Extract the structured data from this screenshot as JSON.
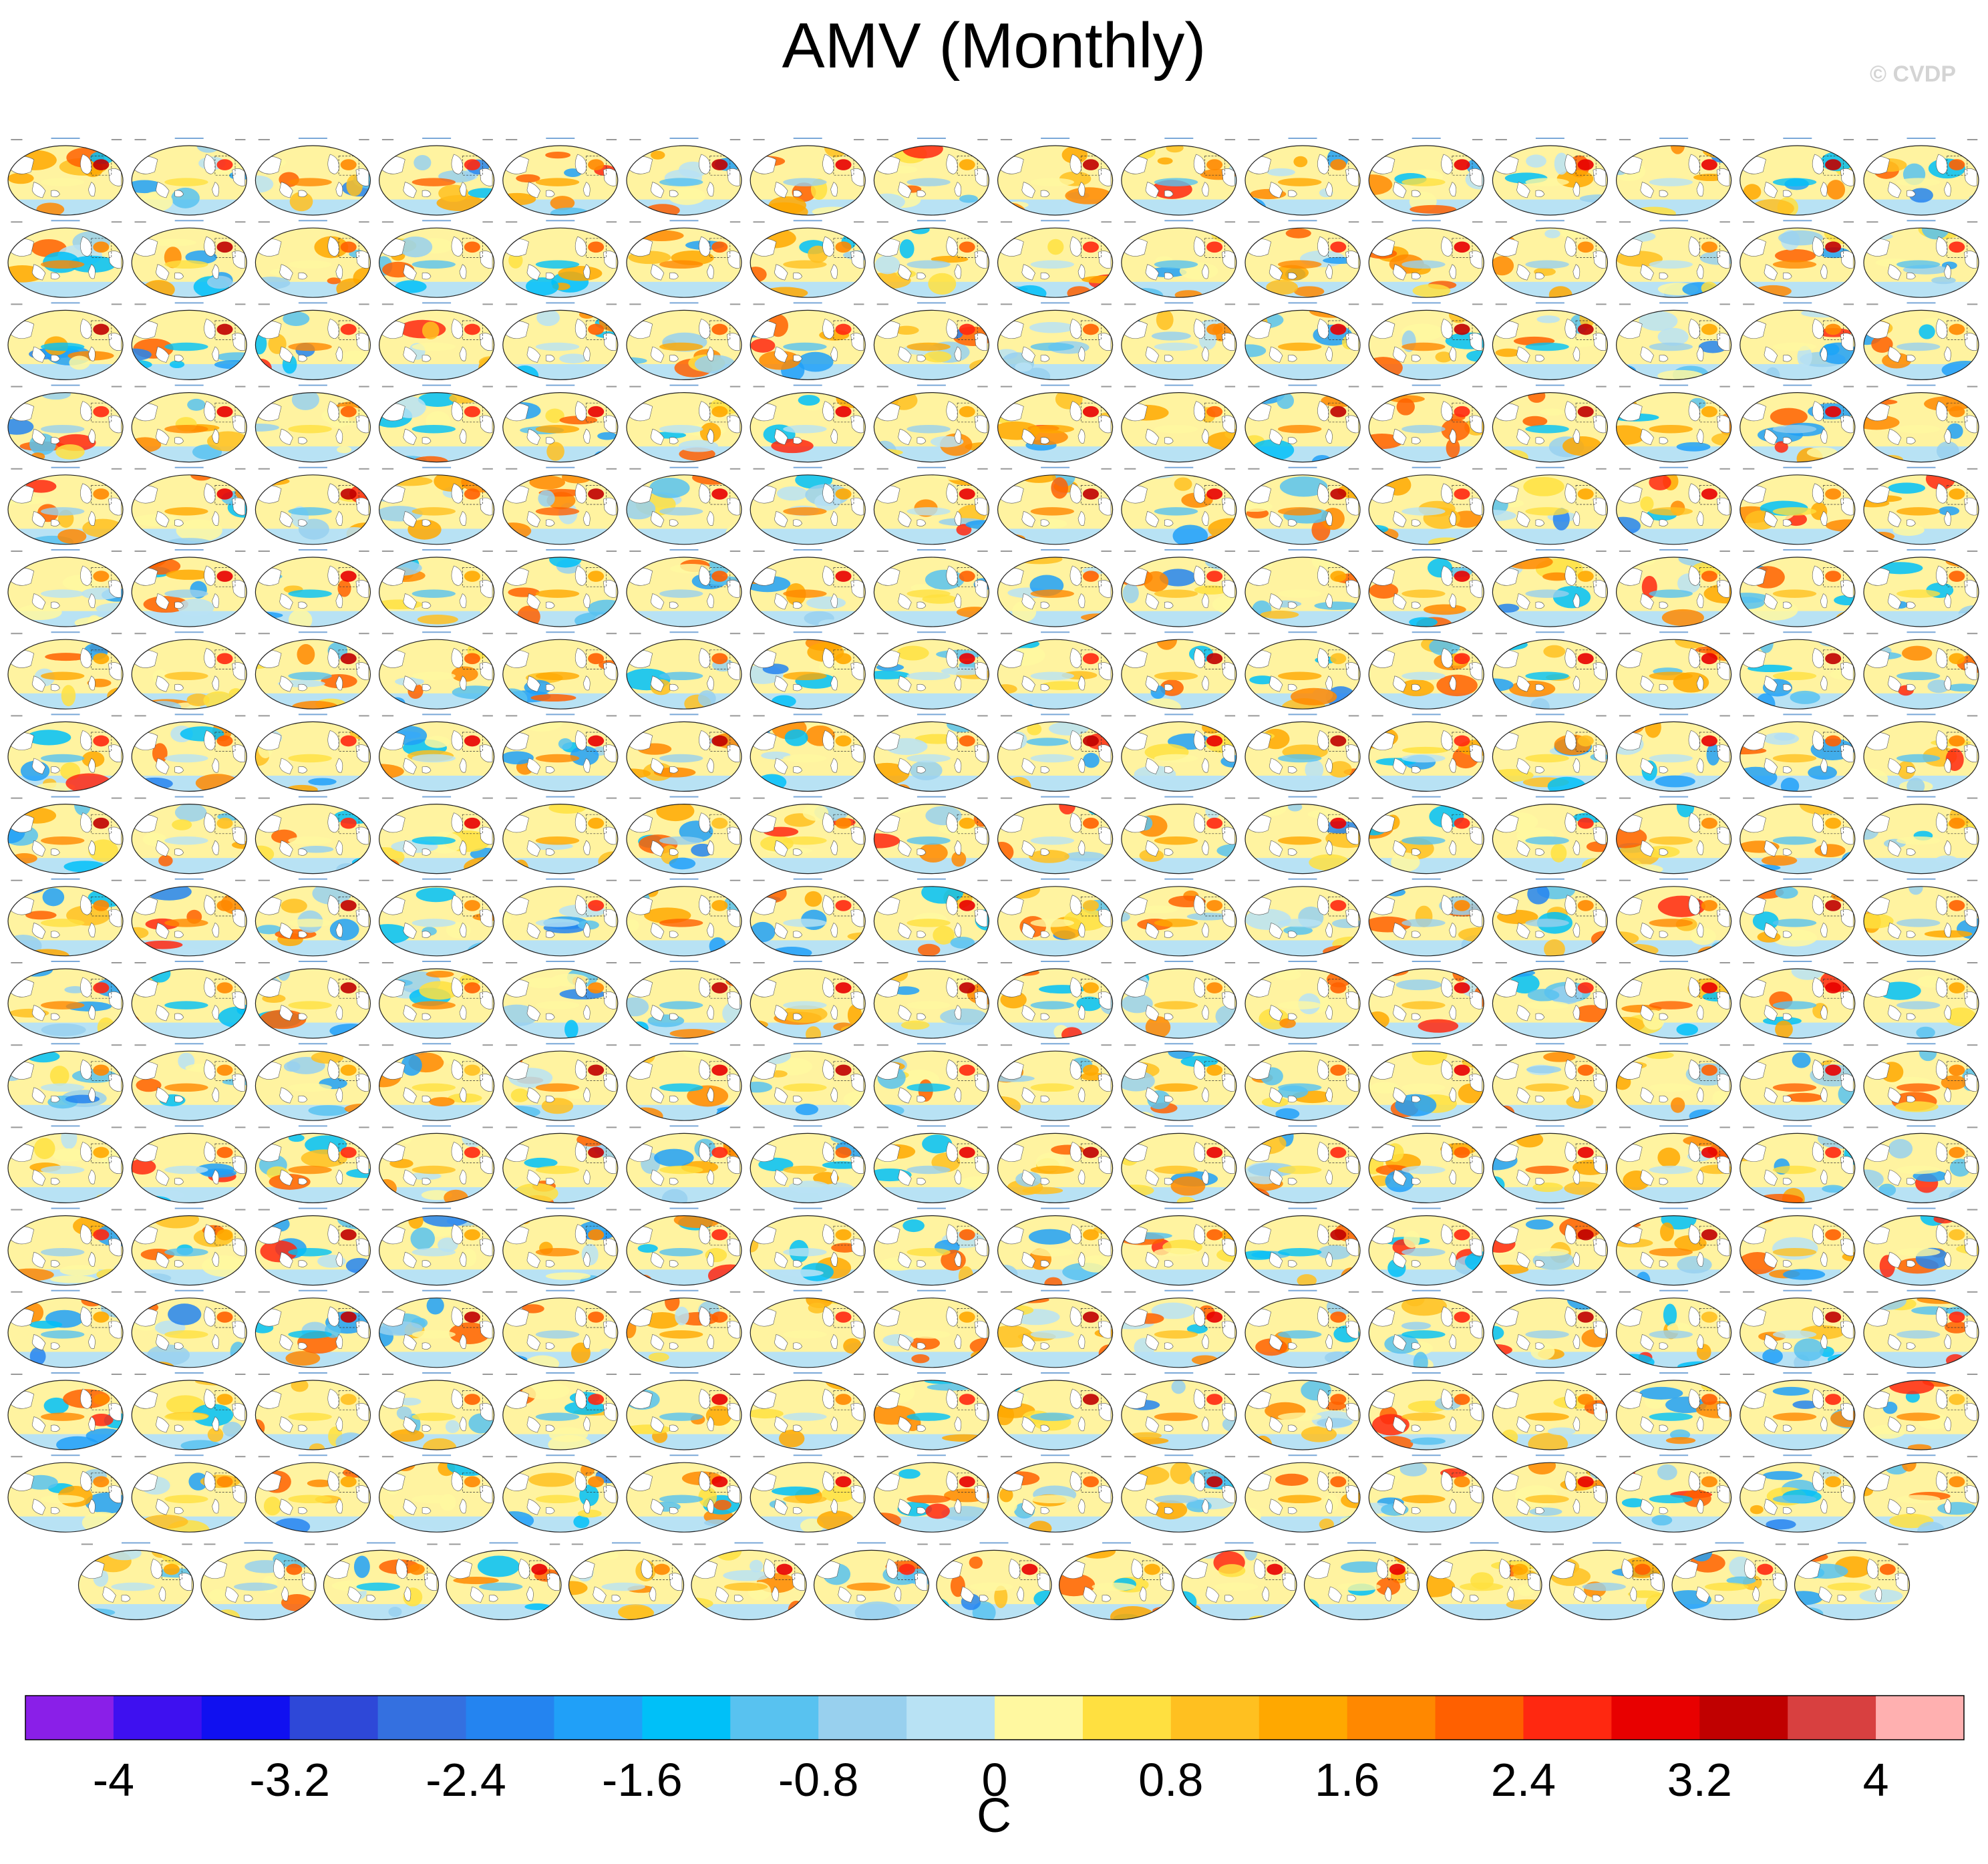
{
  "title": "AMV (Monthly)",
  "watermark": "© CVDP",
  "colorbar": {
    "units": "C",
    "tick_labels": [
      "-4",
      "-3.2",
      "-2.4",
      "-1.6",
      "-0.8",
      "0",
      "0.8",
      "1.6",
      "2.4",
      "3.2",
      "4"
    ],
    "colors": [
      "#8a1fe8",
      "#3e10f0",
      "#1010f0",
      "#2e48d8",
      "#3470e0",
      "#2484f0",
      "#20a0f8",
      "#00c0f8",
      "#58c2f0",
      "#98d0ee",
      "#b8e2f4",
      "#fff8a0",
      "#ffe040",
      "#ffc020",
      "#ffa800",
      "#ff8800",
      "#ff6000",
      "#ff2810",
      "#e80000",
      "#c00000",
      "#d84040",
      "#ffb0b0"
    ]
  },
  "chart_data": {
    "type": "heatmap",
    "description_type": "multi-panel global SST regression maps",
    "rows": 18,
    "panels_per_full_row": 16,
    "last_row_panels": 15,
    "value_range": [
      -4,
      4
    ],
    "units": "C"
  }
}
